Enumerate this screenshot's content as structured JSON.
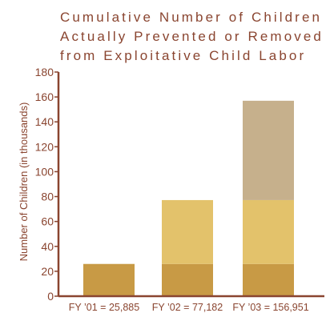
{
  "chart_data": {
    "type": "bar",
    "stacked": true,
    "title_lines": [
      "Cumulative Number of Children",
      "Actually Prevented or Removed",
      "from Exploitative Child Labor"
    ],
    "xlabel": "",
    "ylabel": "Number of Children (in thousands)",
    "ylim": [
      0,
      180
    ],
    "yticks": [
      0,
      20,
      40,
      60,
      80,
      100,
      120,
      140,
      160,
      180
    ],
    "categories": [
      "FY ’01 = 25,885",
      "FY ’02 = 77,182",
      "FY ’03 = 156,951"
    ],
    "series": [
      {
        "values": [
          25.885,
          25.885,
          25.885
        ],
        "color": "#c89a45"
      },
      {
        "values": [
          0,
          51.297,
          51.297
        ],
        "color": "#e3c26b"
      },
      {
        "values": [
          0,
          0,
          79.769
        ],
        "color": "#c6b08c"
      }
    ],
    "grid": false,
    "legend": "none",
    "colors": {
      "text": "#8a4530",
      "axis": "#8a4530"
    }
  }
}
